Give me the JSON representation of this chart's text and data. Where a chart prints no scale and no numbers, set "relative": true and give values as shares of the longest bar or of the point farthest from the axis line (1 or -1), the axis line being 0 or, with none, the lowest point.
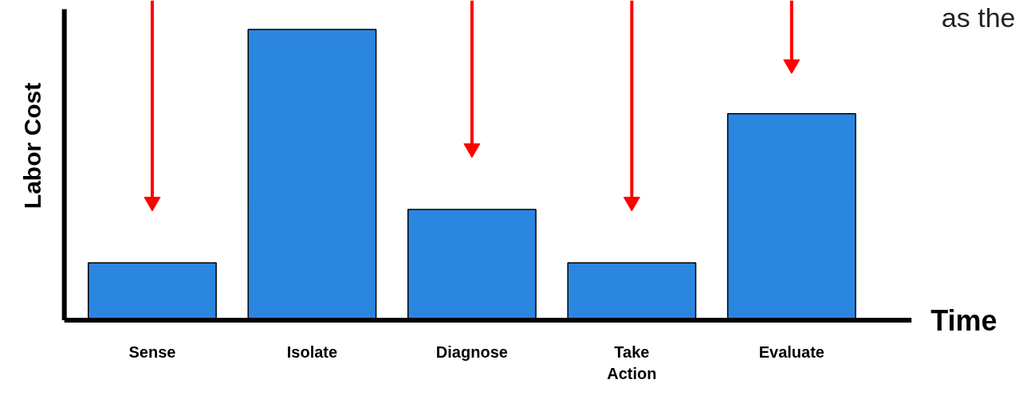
{
  "chart_data": {
    "type": "bar",
    "relative": true,
    "xlabel": "Time",
    "ylabel": "Labor Cost",
    "categories": [
      "Sense",
      "Isolate",
      "Diagnose",
      "Take\nAction",
      "Evaluate"
    ],
    "values": [
      0.197,
      1,
      0.381,
      0.197,
      0.71
    ],
    "color": "#2b86e0",
    "grid": false,
    "annotations": [
      "as the"
    ]
  }
}
